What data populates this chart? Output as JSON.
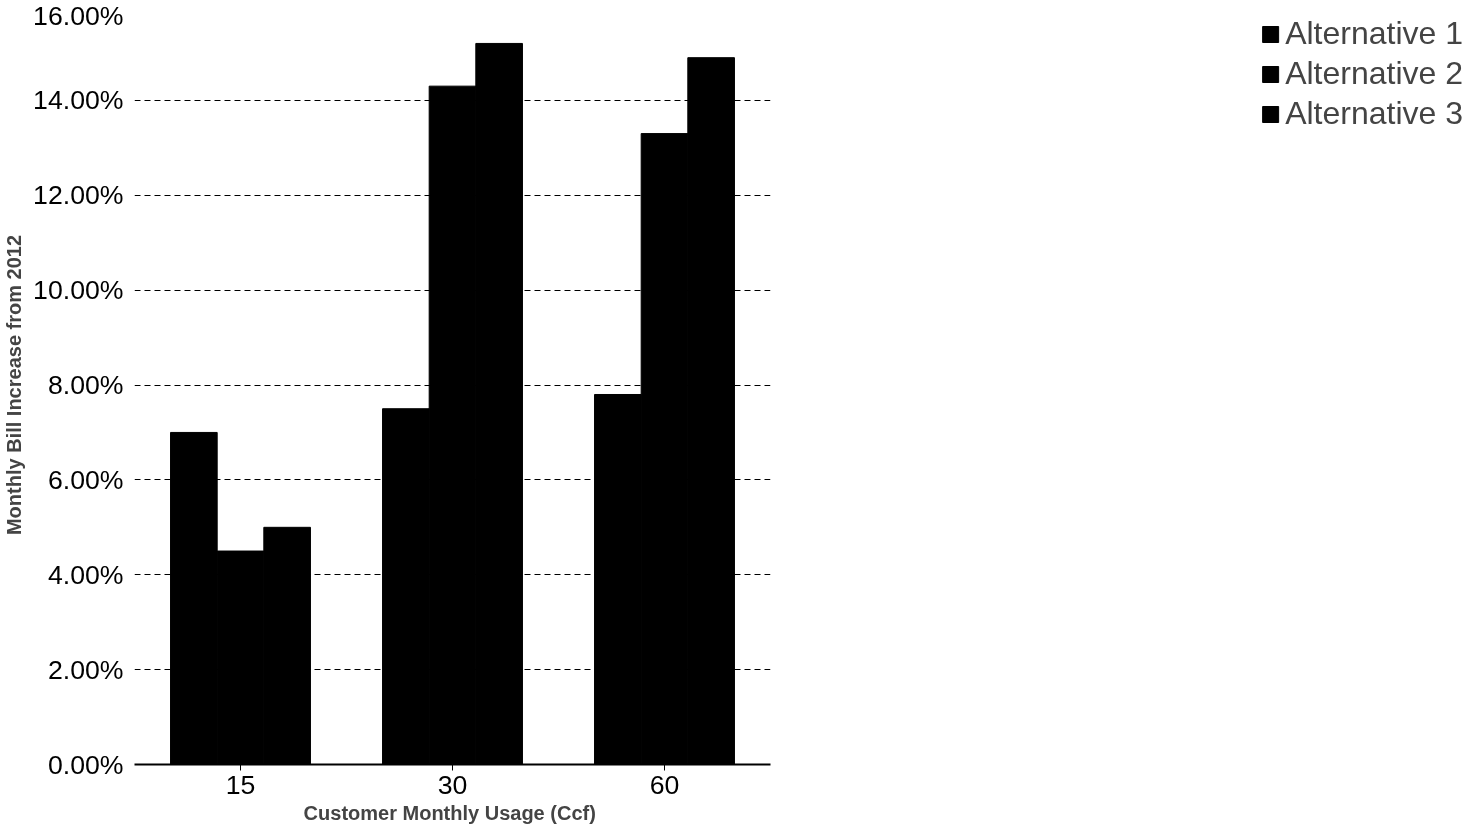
{
  "chart_data": {
    "type": "bar",
    "xlabel": "Customer  Monthly Usage (Ccf)",
    "ylabel": "Monthly Bill Increase from 2012",
    "categories": [
      "15",
      "30",
      "60"
    ],
    "series": [
      {
        "name": "Alternative 1",
        "color": "#000000",
        "values": [
          7.0,
          7.5,
          7.8
        ]
      },
      {
        "name": "Alternative 2",
        "color": "#000000",
        "values": [
          4.5,
          14.3,
          13.3
        ]
      },
      {
        "name": "Alternative 3",
        "color": "#000000",
        "values": [
          5.0,
          15.2,
          14.9
        ]
      }
    ],
    "ylim": [
      0,
      16
    ],
    "yticks": [
      {
        "value": 0,
        "label": "0.00%"
      },
      {
        "value": 2,
        "label": "2.00%"
      },
      {
        "value": 4,
        "label": "4.00%"
      },
      {
        "value": 6,
        "label": "6.00%"
      },
      {
        "value": 8,
        "label": "8.00%"
      },
      {
        "value": 10,
        "label": "10.00%"
      },
      {
        "value": 12,
        "label": "12.00%"
      },
      {
        "value": 14,
        "label": "14.00%"
      },
      {
        "value": 16,
        "label": "16.00%"
      }
    ],
    "grid": "y",
    "line_style": "dashed",
    "legend": "right"
  }
}
